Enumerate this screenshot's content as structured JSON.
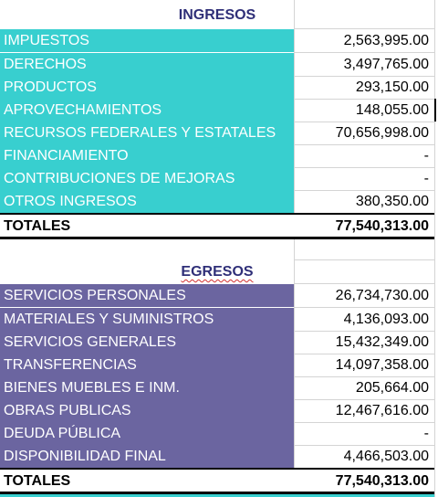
{
  "ingresos": {
    "title": "INGRESOS",
    "rows": [
      {
        "label": "IMPUESTOS",
        "value": "2,563,995.00"
      },
      {
        "label": "DERECHOS",
        "value": "3,497,765.00"
      },
      {
        "label": "PRODUCTOS",
        "value": "293,150.00"
      },
      {
        "label": "APROVECHAMIENTOS",
        "value": "148,055.00"
      },
      {
        "label": "RECURSOS FEDERALES Y ESTATALES",
        "value": "70,656,998.00"
      },
      {
        "label": "FINANCIAMIENTO",
        "value": "-"
      },
      {
        "label": "CONTRIBUCIONES DE MEJORAS",
        "value": "-"
      },
      {
        "label": "OTROS INGRESOS",
        "value": "380,350.00"
      }
    ],
    "total_label": "TOTALES",
    "total_value": "77,540,313.00"
  },
  "egresos": {
    "title": "EGRESOS",
    "rows": [
      {
        "label": "SERVICIOS PERSONALES",
        "value": "26,734,730.00"
      },
      {
        "label": "MATERIALES Y SUMINISTROS",
        "value": "4,136,093.00"
      },
      {
        "label": "SERVICIOS GENERALES",
        "value": "15,432,349.00"
      },
      {
        "label": "TRANSFERENCIAS",
        "value": "14,097,358.00"
      },
      {
        "label": "BIENES MUEBLES E INM.",
        "value": "205,664.00"
      },
      {
        "label": "OBRAS PUBLICAS",
        "value": "12,467,616.00"
      },
      {
        "label": "DEUDA PÚBLICA",
        "value": "-"
      },
      {
        "label": "DISPONIBILIDAD FINAL",
        "value": "4,466,503.00"
      }
    ],
    "total_label": "TOTALES",
    "total_value": "77,540,313.00"
  },
  "colors": {
    "ingresos_fill": "#38cfcf",
    "egresos_fill": "#6b65a0",
    "title_text": "#2f2f78"
  }
}
